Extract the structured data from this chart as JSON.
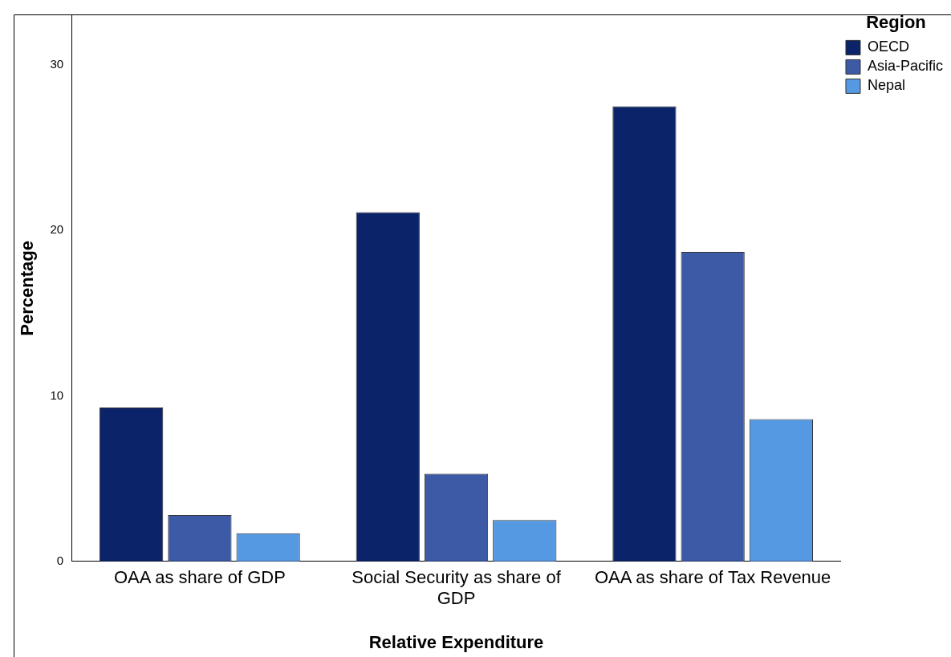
{
  "chart_data": {
    "type": "bar",
    "xlabel": "Relative Expenditure",
    "ylabel": "Percentage",
    "legend_title": "Region",
    "categories": [
      "OAA as share of GDP",
      "Social Security as share of GDP",
      "OAA as share of Tax Revenue"
    ],
    "series": [
      {
        "name": "OECD",
        "color": "#0a2369",
        "values": [
          9.3,
          21.1,
          27.5
        ]
      },
      {
        "name": "Asia-Pacific",
        "color": "#3c5aa6",
        "values": [
          2.8,
          5.3,
          18.7
        ]
      },
      {
        "name": "Nepal",
        "color": "#5599e2",
        "values": [
          1.7,
          2.5,
          8.6
        ]
      }
    ],
    "ylim": [
      0,
      33
    ],
    "yticks": [
      0,
      10,
      20,
      30
    ],
    "grid": false,
    "legend": "top right"
  }
}
